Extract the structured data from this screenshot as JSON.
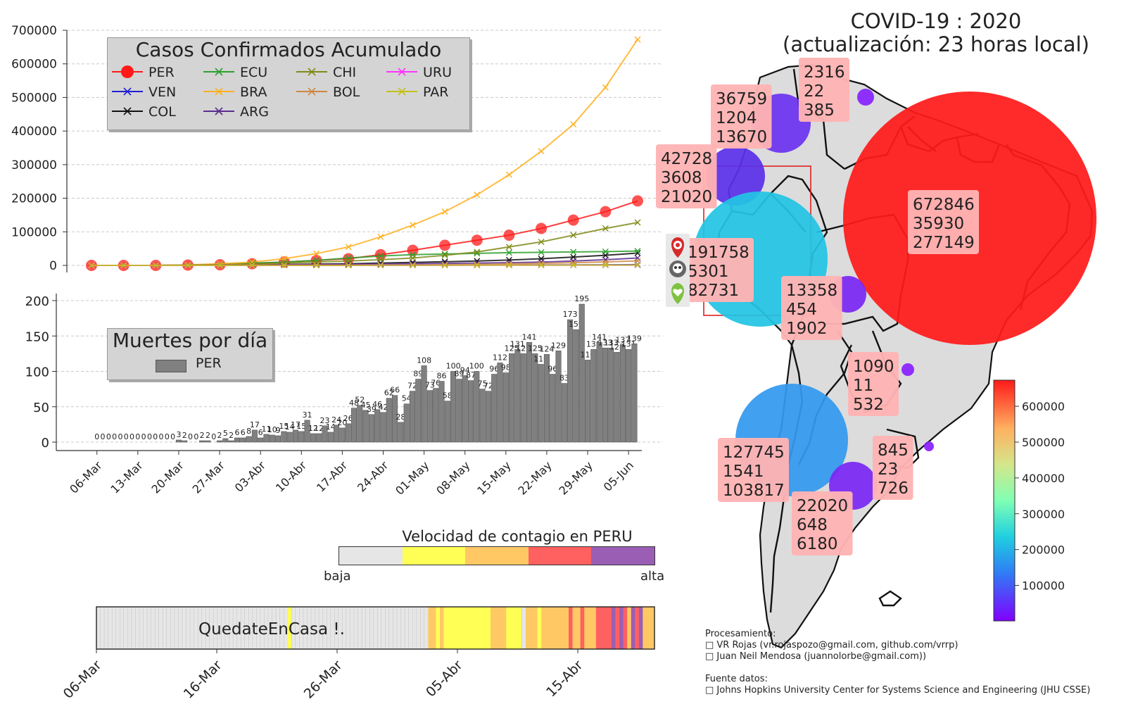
{
  "chart_data": [
    {
      "type": "line",
      "title": "Casos Confirmados Acumulado",
      "xlabel": "",
      "ylabel": "",
      "ylim": [
        0,
        700000
      ],
      "yticks": [
        "0",
        "100000",
        "200000",
        "300000",
        "400000",
        "500000",
        "600000",
        "700000"
      ],
      "grid": true,
      "legend_placement": "top-left",
      "series": [
        {
          "name": "PER",
          "color": "#ff1a1a",
          "marker": "circle",
          "values": [
            0,
            0,
            0,
            1000,
            2000,
            5000,
            10000,
            15000,
            20000,
            32000,
            45000,
            60000,
            75000,
            90000,
            110000,
            135000,
            160000,
            192000
          ]
        },
        {
          "name": "VEN",
          "color": "#1f1fd6",
          "marker": "x",
          "values": [
            0,
            0,
            0,
            100,
            200,
            300,
            400,
            500,
            600,
            700,
            800,
            900,
            1000,
            1100,
            1200,
            1500,
            1800,
            2316
          ]
        },
        {
          "name": "COL",
          "color": "#111111",
          "marker": "x",
          "values": [
            0,
            0,
            0,
            500,
            1000,
            2000,
            3000,
            4000,
            5000,
            7000,
            9000,
            11000,
            13000,
            16000,
            20000,
            25000,
            30000,
            36759
          ]
        },
        {
          "name": "ECU",
          "color": "#2ca02c",
          "marker": "x",
          "values": [
            0,
            0,
            0,
            1000,
            3000,
            7000,
            10000,
            15000,
            22000,
            28000,
            32000,
            34000,
            36000,
            38000,
            39000,
            40000,
            41000,
            42728
          ]
        },
        {
          "name": "BRA",
          "color": "#ffb020",
          "marker": "x",
          "values": [
            0,
            0,
            0,
            1500,
            5000,
            10000,
            20000,
            35000,
            55000,
            85000,
            120000,
            160000,
            210000,
            270000,
            340000,
            420000,
            530000,
            672846
          ]
        },
        {
          "name": "ARG",
          "color": "#5b2c8f",
          "marker": "x",
          "values": [
            0,
            0,
            0,
            500,
            1000,
            1500,
            2000,
            2500,
            3000,
            4000,
            5000,
            6000,
            7000,
            8000,
            10000,
            13000,
            17000,
            22020
          ]
        },
        {
          "name": "CHI",
          "color": "#808a1a",
          "marker": "x",
          "values": [
            0,
            0,
            0,
            1000,
            2000,
            4000,
            7000,
            10000,
            13000,
            17000,
            22000,
            30000,
            40000,
            55000,
            70000,
            90000,
            110000,
            127745
          ]
        },
        {
          "name": "BOL",
          "color": "#cc8844",
          "marker": "x",
          "values": [
            0,
            0,
            0,
            100,
            200,
            300,
            400,
            500,
            600,
            800,
            1200,
            2000,
            3000,
            4500,
            6000,
            8000,
            10500,
            13358
          ]
        },
        {
          "name": "URU",
          "color": "#ff33ff",
          "marker": "x",
          "values": [
            0,
            0,
            0,
            100,
            200,
            300,
            400,
            500,
            600,
            650,
            700,
            720,
            740,
            760,
            780,
            800,
            820,
            845
          ]
        },
        {
          "name": "PAR",
          "color": "#c2c21a",
          "marker": "x",
          "values": [
            0,
            0,
            0,
            50,
            100,
            150,
            200,
            250,
            300,
            400,
            500,
            600,
            700,
            800,
            900,
            950,
            1000,
            1090
          ]
        }
      ]
    },
    {
      "type": "bar",
      "title": "Muertes por día",
      "legend": "PER",
      "ylim": [
        0,
        200
      ],
      "yticks": [
        "0",
        "50",
        "100",
        "150",
        "200"
      ],
      "xticks": [
        "06-Mar",
        "13-Mar",
        "20-Mar",
        "27-Mar",
        "03-Abr",
        "10-Abr",
        "17-Abr",
        "24-Abr",
        "01-May",
        "08-May",
        "15-May",
        "22-May",
        "29-May",
        "05-Jun"
      ],
      "values": [
        0,
        0,
        0,
        0,
        0,
        0,
        0,
        0,
        0,
        0,
        0,
        0,
        0,
        0,
        3,
        2,
        0,
        0,
        2,
        2,
        0,
        2,
        5,
        2,
        6,
        6,
        8,
        17,
        6,
        11,
        10,
        9,
        15,
        14,
        17,
        15,
        31,
        12,
        12,
        23,
        14,
        24,
        20,
        26,
        48,
        52,
        45,
        39,
        46,
        42,
        62,
        66,
        28,
        54,
        72,
        89,
        108,
        73,
        76,
        86,
        58,
        100,
        89,
        94,
        87,
        100,
        75,
        72,
        96,
        112,
        98,
        125,
        131,
        125,
        141,
        125,
        110,
        124,
        96,
        129,
        83,
        173,
        159,
        195,
        116,
        131,
        141,
        133,
        133,
        127,
        137,
        131,
        139
      ],
      "bar_labels": [
        "0",
        "0",
        "0",
        "0",
        "0",
        "0",
        "0",
        "0",
        "0",
        "0",
        "0",
        "0",
        "0",
        "0",
        "3",
        "2",
        "0",
        "0",
        "2",
        "2",
        "0",
        "2",
        "5",
        "2",
        "6",
        "6",
        "8",
        "17",
        "6",
        "11",
        "10",
        "9",
        "15",
        "14",
        "17",
        "15",
        "31",
        "12",
        "12",
        "23",
        "14",
        "24",
        "20",
        "26",
        "48",
        "52",
        "45",
        "39",
        "46",
        "42",
        "62",
        "66",
        "28",
        "54",
        "72",
        "89",
        "108",
        "73",
        "76",
        "86",
        "58",
        "100",
        "89",
        "94",
        "87",
        "100",
        "75",
        "72",
        "96",
        "112",
        "98",
        "125",
        "131",
        "125",
        "141",
        "125",
        "110",
        "124",
        "96",
        "129",
        "83",
        "173",
        "159",
        "195",
        "116",
        "131",
        "141",
        "133",
        "133",
        "127",
        "137",
        "131",
        "139"
      ]
    },
    {
      "type": "heatmap",
      "title": "Velocidad de contagio en PERU",
      "scale_low": "baja",
      "scale_high": "alta",
      "scale_colors": [
        "#e6e6e6",
        "#ffff55",
        "#ffc865",
        "#ff6060",
        "#9a5fb5"
      ],
      "strip_text": "QuedateEnCasa !.",
      "xticks": [
        "06-Mar",
        "16-Mar",
        "26-Mar",
        "05-Abr",
        "15-Abr"
      ],
      "levels": [
        0,
        0,
        0,
        0,
        0,
        0,
        0,
        0,
        0,
        0,
        0,
        0,
        0,
        0,
        0,
        0,
        0,
        0,
        0,
        0,
        0,
        0,
        0,
        0,
        0,
        0,
        0,
        0,
        0,
        0,
        0,
        0,
        0,
        0,
        0,
        0,
        0,
        0,
        0,
        0,
        0,
        0,
        0,
        0,
        0,
        0,
        0,
        0,
        0,
        1,
        0,
        0,
        0,
        0,
        0,
        0,
        0,
        0,
        0,
        0,
        0,
        0,
        0,
        0,
        0,
        0,
        0,
        0,
        0,
        0,
        0,
        0,
        0,
        0,
        0,
        0,
        0,
        0,
        0,
        0,
        0,
        0,
        0,
        0,
        0,
        2,
        2,
        1,
        2,
        1,
        1,
        1,
        1,
        1,
        1,
        1,
        1,
        1,
        1,
        1,
        1,
        2,
        2,
        2,
        2,
        1,
        1,
        1,
        1,
        0,
        2,
        2,
        2,
        1,
        2,
        2,
        2,
        2,
        2,
        2,
        2,
        3,
        2,
        2,
        3,
        2,
        2,
        2,
        3,
        3,
        3,
        3,
        4,
        3,
        4,
        3,
        2,
        4,
        3,
        4,
        2,
        2,
        2
      ]
    },
    {
      "type": "scatter",
      "title": "COVID-19 : 2020",
      "subtitle": "(actualización: 23 horas local)",
      "colorbar_ticks": [
        "100000",
        "200000",
        "300000",
        "400000",
        "500000",
        "600000"
      ],
      "points": [
        {
          "country": "VEN",
          "lines": [
            "2316",
            "22",
            "385"
          ],
          "value": 2316,
          "color": "#8822ff"
        },
        {
          "country": "COL",
          "lines": [
            "36759",
            "1204",
            "13670"
          ],
          "value": 36759,
          "color": "#6a33f0"
        },
        {
          "country": "ECU",
          "lines": [
            "42728",
            "3608",
            "21020"
          ],
          "value": 42728,
          "color": "#5a30e8"
        },
        {
          "country": "PER",
          "lines": [
            "191758",
            "5301",
            "82731"
          ],
          "value": 191758,
          "color": "#22c4e4"
        },
        {
          "country": "BRA",
          "lines": [
            "672846",
            "35930",
            "277149"
          ],
          "value": 672846,
          "color": "#ff1a1a"
        },
        {
          "country": "BOL",
          "lines": [
            "13358",
            "454",
            "1902"
          ],
          "value": 13358,
          "color": "#7a28f4"
        },
        {
          "country": "PAR",
          "lines": [
            "1090",
            "11",
            "532"
          ],
          "value": 1090,
          "color": "#8a20ff"
        },
        {
          "country": "CHI",
          "lines": [
            "127745",
            "1541",
            "103817"
          ],
          "value": 127745,
          "color": "#3399ee"
        },
        {
          "country": "URU",
          "lines": [
            "845",
            "23",
            "726"
          ],
          "value": 845,
          "color": "#8a20ff"
        },
        {
          "country": "ARG",
          "lines": [
            "22020",
            "648",
            "6180"
          ],
          "value": 22020,
          "color": "#7a28f4"
        }
      ]
    }
  ],
  "icons": [
    "virus-pin-icon",
    "skull-icon",
    "heart-pin-icon"
  ],
  "credits": {
    "heading": "Procesamiento:",
    "line1": "□ VR Rojas (vr.rojaspozo@gmail.com, github.com/vrrp)",
    "line2": "□ Juan Neil Mendosa (juannolorbe@gmail.com))",
    "source_heading": "Fuente datos:",
    "source": "□ Johns Hopkins University Center for Systems Science and Engineering (JHU CSSE)"
  }
}
